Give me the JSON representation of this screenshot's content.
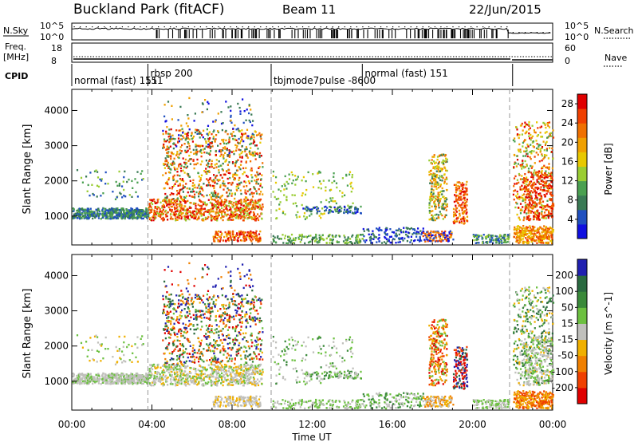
{
  "header": {
    "title": "Buckland Park (fitACF)",
    "beam": "Beam 11",
    "date": "22/Jun/2015"
  },
  "panels": {
    "nsky_label": "N.Sky",
    "nsky_ticks": [
      "10^5",
      "10^0"
    ],
    "nsearch_label": "N.Search",
    "nsearch_ticks": [
      "10^5",
      "10^0"
    ],
    "freq_label": "Freq.",
    "freq_unit": "[MHz]",
    "freq_ticks": [
      "18",
      "8"
    ],
    "nave_label": "Nave",
    "nave_ticks": [
      "60",
      "0"
    ],
    "cpid_label": "CPID",
    "cpid_segments": [
      {
        "label": "normal (fast) 151",
        "start_h": 0,
        "end_h": 3.8
      },
      {
        "label": "rbsp 200",
        "start_h": 3.8,
        "end_h": 9.95
      },
      {
        "label": "tbjmode7pulse -8600",
        "start_h": 9.95,
        "end_h": 14.5
      },
      {
        "label": "normal (fast) 151",
        "start_h": 14.5,
        "end_h": 22
      }
    ],
    "cpid_tail_label": "151"
  },
  "chart_data": [
    {
      "type": "heatmap",
      "title": "",
      "xlabel": "",
      "ylabel": "Slant Range [km]",
      "xlim": [
        0,
        24
      ],
      "ylim": [
        180,
        4600
      ],
      "yticks": [
        "1000",
        "2000",
        "3000",
        "4000"
      ],
      "colorbar": {
        "label": "Power [dB]",
        "ticks": [
          "4",
          "8",
          "12",
          "16",
          "20",
          "24",
          "28"
        ],
        "colors": [
          "#1010e0",
          "#2050c0",
          "#3a7a55",
          "#4aa050",
          "#9acd32",
          "#e8c800",
          "#f0a000",
          "#f07000",
          "#f04000",
          "#e00000"
        ]
      }
    },
    {
      "type": "heatmap",
      "title": "",
      "xlabel": "Time UT",
      "ylabel": "Slant Range [km]",
      "xlim": [
        0,
        24
      ],
      "ylim": [
        180,
        4600
      ],
      "xticks": [
        "00:00",
        "04:00",
        "08:00",
        "12:00",
        "16:00",
        "20:00",
        "00:00"
      ],
      "yticks": [
        "1000",
        "2000",
        "3000",
        "4000"
      ],
      "colorbar": {
        "label": "Velocity [m s^-1]",
        "ticks": [
          "200",
          "100",
          "50",
          "15",
          "-15",
          "-50",
          "-100",
          "-200"
        ],
        "colors": [
          "#2020b0",
          "#2a6a40",
          "#3a8a3a",
          "#6cc040",
          "#c0c0bc",
          "#f0b000",
          "#f08000",
          "#f04000",
          "#e00000"
        ]
      }
    }
  ]
}
